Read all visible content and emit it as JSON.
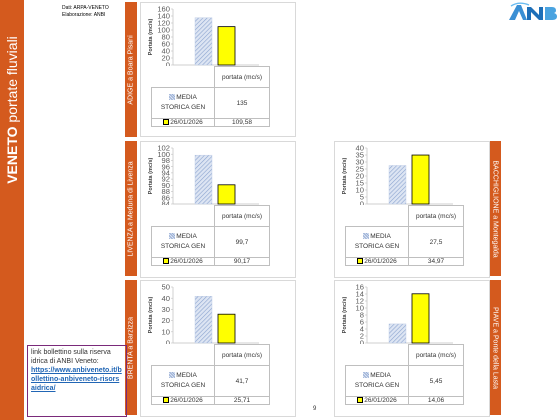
{
  "page": {
    "region_title_bold": "VENETO",
    "region_title_rest": "portate fluviali",
    "source_line1": "Dati: ARPA-VENETO",
    "source_line2": "Elaborazione: ANBI",
    "link_text": "link bollettino sulla riserva idrica di ANBI Veneto:",
    "link_url": "https://www.anbiveneto.it/bollettino-anbiveneto-risorsaidrica/",
    "page_number": "9"
  },
  "colors": {
    "accent": "#d45a1e",
    "series_media": "#9ab0d6",
    "series_date": "#ffff00"
  },
  "chart_data": [
    {
      "type": "bar",
      "station": "ADIGE a Boara Pisani",
      "ylabel": "Portata (mc/s)",
      "xlabel": "portata (mc/s)",
      "ylim": [
        0,
        160
      ],
      "ticks": [
        0,
        20,
        40,
        60,
        80,
        100,
        120,
        140,
        160
      ],
      "series": [
        {
          "name": "MEDIA STORICA GEN",
          "value": 135,
          "label": "135"
        },
        {
          "name": "26/01/2026",
          "value": 109.58,
          "label": "109,58"
        }
      ]
    },
    {
      "type": "bar",
      "station": "LIVENZA a Meduna di Livenza",
      "ylabel": "Portata (mc/s)",
      "xlabel": "portata (mc/s)",
      "ylim": [
        84,
        102
      ],
      "ticks": [
        84,
        86,
        88,
        90,
        92,
        94,
        96,
        98,
        100,
        102
      ],
      "series": [
        {
          "name": "MEDIA STORICA GEN",
          "value": 99.7,
          "label": "99,7"
        },
        {
          "name": "26/01/2026",
          "value": 90.17,
          "label": "90,17"
        }
      ]
    },
    {
      "type": "bar",
      "station": "BACCHIGLIONE a Montegalda",
      "ylabel": "Portata (mc/s)",
      "xlabel": "portata (mc/s)",
      "ylim": [
        0,
        40
      ],
      "ticks": [
        0,
        5,
        10,
        15,
        20,
        25,
        30,
        35,
        40
      ],
      "series": [
        {
          "name": "MEDIA STORICA GEN",
          "value": 27.5,
          "label": "27,5"
        },
        {
          "name": "26/01/2026",
          "value": 34.97,
          "label": "34,97"
        }
      ]
    },
    {
      "type": "bar",
      "station": "BRENTA a Barzizza",
      "ylabel": "Portata (mc/s)",
      "xlabel": "portata (mc/s)",
      "ylim": [
        0,
        50
      ],
      "ticks": [
        0,
        10,
        20,
        30,
        40,
        50
      ],
      "series": [
        {
          "name": "MEDIA STORICA GEN",
          "value": 41.7,
          "label": "41,7"
        },
        {
          "name": "26/01/2026",
          "value": 25.71,
          "label": "25,71"
        }
      ]
    },
    {
      "type": "bar",
      "station": "PIAVE a Ponte della Lasta",
      "ylabel": "Portata (mc/s)",
      "xlabel": "portata (mc/s)",
      "ylim": [
        0,
        16
      ],
      "ticks": [
        0,
        2,
        4,
        6,
        8,
        10,
        12,
        14,
        16
      ],
      "series": [
        {
          "name": "MEDIA STORICA GEN",
          "value": 5.45,
          "label": "5,45"
        },
        {
          "name": "26/01/2026",
          "value": 14.06,
          "label": "14,06"
        }
      ]
    }
  ]
}
